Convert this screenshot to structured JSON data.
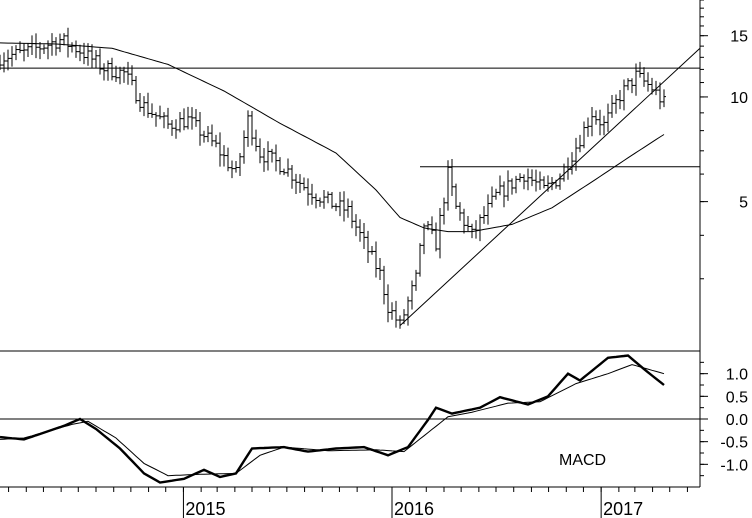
{
  "chart_data": [
    {
      "type": "ohlc",
      "panel": "price",
      "scale": "log",
      "ylim": [
        2.0,
        19.0
      ],
      "y_ticks": [
        {
          "value": 5,
          "label": "5"
        },
        {
          "value": 10,
          "label": "10"
        },
        {
          "value": 15,
          "label": "15"
        }
      ],
      "x_range": [
        "2014-02-14",
        "2017-06-23"
      ],
      "x_ticks": [
        {
          "date": "2015-01-01",
          "label": "2015"
        },
        {
          "date": "2016-01-01",
          "label": "2016"
        },
        {
          "date": "2017-01-01",
          "label": "2017"
        }
      ],
      "anchors": [
        {
          "date": "2014-02-14",
          "value": 13.0
        },
        {
          "date": "2014-03-28",
          "value": 13.4
        },
        {
          "date": "2014-05-30",
          "value": 14.6
        },
        {
          "date": "2014-07-04",
          "value": 13.6
        },
        {
          "date": "2014-08-15",
          "value": 12.1
        },
        {
          "date": "2014-09-19",
          "value": 11.7
        },
        {
          "date": "2014-10-24",
          "value": 9.4
        },
        {
          "date": "2014-12-05",
          "value": 8.3
        },
        {
          "date": "2015-01-09",
          "value": 8.6
        },
        {
          "date": "2015-02-27",
          "value": 7.2
        },
        {
          "date": "2015-04-03",
          "value": 6.0
        },
        {
          "date": "2015-04-24",
          "value": 8.6
        },
        {
          "date": "2015-05-15",
          "value": 6.9
        },
        {
          "date": "2015-06-26",
          "value": 6.3
        },
        {
          "date": "2015-08-07",
          "value": 5.4
        },
        {
          "date": "2015-09-11",
          "value": 5.0
        },
        {
          "date": "2015-10-16",
          "value": 4.7
        },
        {
          "date": "2015-11-13",
          "value": 3.8
        },
        {
          "date": "2015-12-11",
          "value": 3.1
        },
        {
          "date": "2015-12-25",
          "value": 2.5
        },
        {
          "date": "2016-01-15",
          "value": 2.2
        },
        {
          "date": "2016-02-12",
          "value": 3.0
        },
        {
          "date": "2016-02-26",
          "value": 4.3
        },
        {
          "date": "2016-03-18",
          "value": 3.8
        },
        {
          "date": "2016-04-08",
          "value": 6.0
        },
        {
          "date": "2016-04-22",
          "value": 4.8
        },
        {
          "date": "2016-05-20",
          "value": 4.0
        },
        {
          "date": "2016-07-01",
          "value": 5.2
        },
        {
          "date": "2016-08-19",
          "value": 6.0
        },
        {
          "date": "2016-09-23",
          "value": 5.4
        },
        {
          "date": "2016-10-21",
          "value": 5.9
        },
        {
          "date": "2016-11-18",
          "value": 7.2
        },
        {
          "date": "2016-12-16",
          "value": 9.0
        },
        {
          "date": "2017-01-06",
          "value": 8.3
        },
        {
          "date": "2017-02-03",
          "value": 10.1
        },
        {
          "date": "2017-03-03",
          "value": 11.5
        },
        {
          "date": "2017-03-31",
          "value": 10.6
        },
        {
          "date": "2017-04-21",
          "value": 9.6
        }
      ],
      "moving_average": [
        {
          "date": "2014-02-14",
          "value": 14.3
        },
        {
          "date": "2014-05-23",
          "value": 14.2
        },
        {
          "date": "2014-08-29",
          "value": 13.8
        },
        {
          "date": "2014-12-05",
          "value": 12.4
        },
        {
          "date": "2015-03-13",
          "value": 10.4
        },
        {
          "date": "2015-06-19",
          "value": 8.4
        },
        {
          "date": "2015-09-25",
          "value": 6.9
        },
        {
          "date": "2015-12-04",
          "value": 5.4
        },
        {
          "date": "2016-01-15",
          "value": 4.5
        },
        {
          "date": "2016-02-26",
          "value": 4.2
        },
        {
          "date": "2016-04-08",
          "value": 4.1
        },
        {
          "date": "2016-05-20",
          "value": 4.1
        },
        {
          "date": "2016-07-29",
          "value": 4.3
        },
        {
          "date": "2016-10-07",
          "value": 4.8
        },
        {
          "date": "2016-12-16",
          "value": 5.7
        },
        {
          "date": "2017-02-24",
          "value": 6.8
        },
        {
          "date": "2017-04-21",
          "value": 7.8
        }
      ],
      "lines": [
        {
          "kind": "horizontal",
          "value": 12.1
        },
        {
          "kind": "segment",
          "from": {
            "date": "2016-02-19",
            "value": 6.3
          },
          "to": {
            "date": "2017-06-23",
            "value": 6.3
          }
        },
        {
          "kind": "trendline",
          "from": {
            "date": "2016-01-15",
            "value": 2.2
          },
          "to": {
            "date": "2017-06-23",
            "value": 13.8
          }
        }
      ]
    },
    {
      "type": "line",
      "panel": "indicator",
      "ylim": [
        -1.5,
        1.5
      ],
      "y_ticks": [
        {
          "value": 1.0,
          "label": "1.0"
        },
        {
          "value": 0.5,
          "label": "0.5"
        },
        {
          "value": 0.0,
          "label": "0.0"
        },
        {
          "value": -0.5,
          "label": "-0.5"
        },
        {
          "value": -1.0,
          "label": "-1.0"
        }
      ],
      "annotation": "MACD",
      "zero_line": 0.0,
      "series": [
        {
          "values": [
            {
              "date": "2014-02-14",
              "value": -0.4
            },
            {
              "date": "2014-03-28",
              "value": -0.45
            },
            {
              "date": "2014-06-06",
              "value": -0.15
            },
            {
              "date": "2014-07-04",
              "value": 0.0
            },
            {
              "date": "2014-08-01",
              "value": -0.22
            },
            {
              "date": "2014-09-12",
              "value": -0.65
            },
            {
              "date": "2014-10-24",
              "value": -1.2
            },
            {
              "date": "2014-11-21",
              "value": -1.4
            },
            {
              "date": "2015-01-02",
              "value": -1.32
            },
            {
              "date": "2015-02-06",
              "value": -1.12
            },
            {
              "date": "2015-03-06",
              "value": -1.28
            },
            {
              "date": "2015-04-03",
              "value": -1.2
            },
            {
              "date": "2015-05-01",
              "value": -0.65
            },
            {
              "date": "2015-06-26",
              "value": -0.62
            },
            {
              "date": "2015-08-07",
              "value": -0.72
            },
            {
              "date": "2015-09-25",
              "value": -0.65
            },
            {
              "date": "2015-11-13",
              "value": -0.62
            },
            {
              "date": "2015-12-25",
              "value": -0.8
            },
            {
              "date": "2016-01-29",
              "value": -0.62
            },
            {
              "date": "2016-03-04",
              "value": -0.02
            },
            {
              "date": "2016-03-18",
              "value": 0.25
            },
            {
              "date": "2016-04-15",
              "value": 0.12
            },
            {
              "date": "2016-06-03",
              "value": 0.25
            },
            {
              "date": "2016-07-08",
              "value": 0.48
            },
            {
              "date": "2016-08-26",
              "value": 0.32
            },
            {
              "date": "2016-09-30",
              "value": 0.5
            },
            {
              "date": "2016-11-04",
              "value": 1.0
            },
            {
              "date": "2016-11-25",
              "value": 0.85
            },
            {
              "date": "2017-01-13",
              "value": 1.35
            },
            {
              "date": "2017-02-17",
              "value": 1.4
            },
            {
              "date": "2017-03-17",
              "value": 1.1
            },
            {
              "date": "2017-04-21",
              "value": 0.75
            }
          ]
        },
        {
          "values": [
            {
              "date": "2014-02-14",
              "value": -0.45
            },
            {
              "date": "2014-03-28",
              "value": -0.42
            },
            {
              "date": "2014-06-20",
              "value": -0.12
            },
            {
              "date": "2014-07-18",
              "value": -0.05
            },
            {
              "date": "2014-09-05",
              "value": -0.42
            },
            {
              "date": "2014-10-24",
              "value": -0.98
            },
            {
              "date": "2014-12-05",
              "value": -1.25
            },
            {
              "date": "2015-01-30",
              "value": -1.22
            },
            {
              "date": "2015-04-03",
              "value": -1.2
            },
            {
              "date": "2015-05-15",
              "value": -0.8
            },
            {
              "date": "2015-06-26",
              "value": -0.62
            },
            {
              "date": "2015-09-11",
              "value": -0.7
            },
            {
              "date": "2015-12-04",
              "value": -0.68
            },
            {
              "date": "2016-01-22",
              "value": -0.72
            },
            {
              "date": "2016-03-04",
              "value": -0.3
            },
            {
              "date": "2016-04-08",
              "value": 0.05
            },
            {
              "date": "2016-05-20",
              "value": 0.15
            },
            {
              "date": "2016-07-22",
              "value": 0.35
            },
            {
              "date": "2016-09-16",
              "value": 0.38
            },
            {
              "date": "2016-11-18",
              "value": 0.78
            },
            {
              "date": "2017-01-13",
              "value": 1.0
            },
            {
              "date": "2017-02-24",
              "value": 1.2
            },
            {
              "date": "2017-04-21",
              "value": 1.0
            }
          ]
        }
      ]
    }
  ]
}
